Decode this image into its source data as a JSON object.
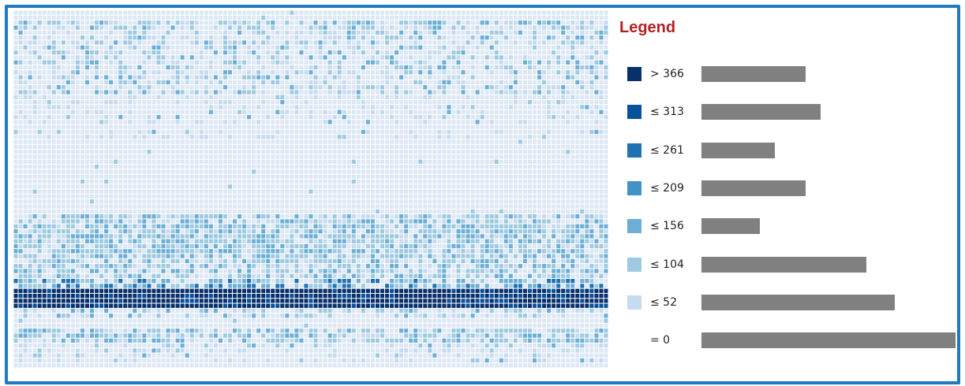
{
  "legend": {
    "title": "Legend"
  },
  "chart_data": {
    "type": "heatmap",
    "grid": {
      "rows": 72,
      "cols": 125
    },
    "bins": [
      {
        "label": "> 366",
        "color": "#08306b",
        "relative_count": 0.41
      },
      {
        "label": "≤ 313",
        "color": "#08519c",
        "relative_count": 0.47
      },
      {
        "label": "≤ 261",
        "color": "#2171b5",
        "relative_count": 0.29
      },
      {
        "label": "≤ 209",
        "color": "#4292c6",
        "relative_count": 0.41
      },
      {
        "label": "≤ 156",
        "color": "#6baed6",
        "relative_count": 0.23
      },
      {
        "label": "≤ 104",
        "color": "#9ecae1",
        "relative_count": 0.65
      },
      {
        "label": "≤ 52",
        "color": "#c6dbef",
        "relative_count": 0.76
      },
      {
        "label": "= 0",
        "color": null,
        "relative_count": 1.0
      }
    ],
    "empty_cell_color": "#dde8f4",
    "row_profile": [
      {
        "rows": [
          2,
          4
        ],
        "pattern": "scattered",
        "density": 0.35,
        "bin_level": 5
      },
      {
        "rows": [
          5,
          16
        ],
        "pattern": "scattered",
        "density": 0.22,
        "bin_level": 5
      },
      {
        "rows": [
          17,
          22
        ],
        "pattern": "sparse",
        "density": 0.04,
        "bin_level": 5
      },
      {
        "rows": [
          24,
          25
        ],
        "pattern": "sparse",
        "density": 0.05,
        "bin_level": 5
      },
      {
        "rows": [
          41,
          42
        ],
        "pattern": "banded",
        "density": 0.55,
        "bin_level": 5
      },
      {
        "rows": [
          43,
          49
        ],
        "pattern": "banded",
        "density": 0.65,
        "bin_level": 5
      },
      {
        "rows": [
          50,
          53
        ],
        "pattern": "banded",
        "density": 0.5,
        "bin_level": 5
      },
      {
        "rows": [
          54,
          55
        ],
        "pattern": "transition",
        "density": 0.45,
        "bin_level": 4
      },
      {
        "rows": [
          56,
          59
        ],
        "pattern": "hot-band",
        "density": 1.0,
        "bin_level": 0
      },
      {
        "rows": [
          60,
          61
        ],
        "pattern": "banded",
        "density": 0.3,
        "bin_level": 5
      },
      {
        "rows": [
          64,
          66
        ],
        "pattern": "banded",
        "density": 0.55,
        "bin_level": 5
      },
      {
        "rows": [
          67,
          68
        ],
        "pattern": "sparse",
        "density": 0.08,
        "bin_level": 5
      },
      {
        "rows": [
          69,
          70
        ],
        "pattern": "sparse",
        "density": 0.04,
        "bin_level": 5
      }
    ]
  }
}
